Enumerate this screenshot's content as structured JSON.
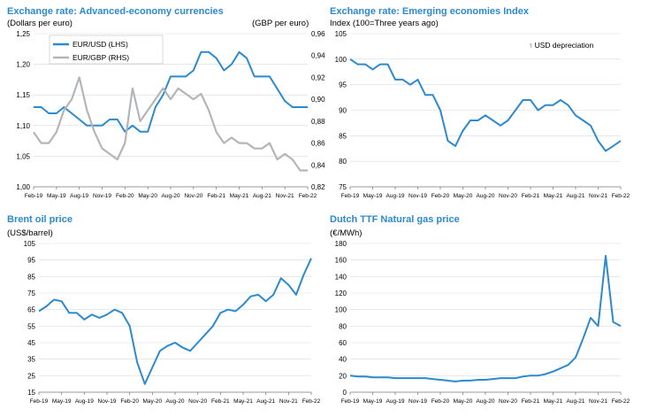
{
  "colors": {
    "blue": "#2b8ad0",
    "grey": "#b3b6b8",
    "grid": "#d9d9d9",
    "title": "#2b8ad0"
  },
  "x_ticks": [
    "Feb-19",
    "May-19",
    "Aug-19",
    "Nov-19",
    "Feb-20",
    "May-20",
    "Aug-20",
    "Nov-20",
    "Feb-21",
    "May-21",
    "Aug-21",
    "Nov-21",
    "Feb-22"
  ],
  "panels": [
    {
      "title": "Exchange rate: Advanced-economy currencies",
      "unit_left": "(Dollars per euro)",
      "unit_right": "(GBP per euro)"
    },
    {
      "title": "Exchange rate: Emerging economies Index",
      "unit_left": "Index (100=Three years ago)",
      "annotation": "USD depreciation",
      "annotation_icon": "up-arrow-icon"
    },
    {
      "title": "Brent oil price",
      "unit_left": "(US$/barrel)"
    },
    {
      "title": "Dutch TTF Natural gas price",
      "unit_left": "(€/MWh)"
    }
  ],
  "chart_data": [
    {
      "type": "line",
      "x": [
        "Feb-19",
        "Mar-19",
        "Apr-19",
        "May-19",
        "Jun-19",
        "Jul-19",
        "Aug-19",
        "Sep-19",
        "Oct-19",
        "Nov-19",
        "Dec-19",
        "Jan-20",
        "Feb-20",
        "Mar-20",
        "Apr-20",
        "May-20",
        "Jun-20",
        "Jul-20",
        "Aug-20",
        "Sep-20",
        "Oct-20",
        "Nov-20",
        "Dec-20",
        "Jan-21",
        "Feb-21",
        "Mar-21",
        "Apr-21",
        "May-21",
        "Jun-21",
        "Jul-21",
        "Aug-21",
        "Sep-21",
        "Oct-21",
        "Nov-21",
        "Dec-21",
        "Jan-22",
        "Feb-22"
      ],
      "series": [
        {
          "name": "EUR/USD (LHS)",
          "axis": "left",
          "values": [
            1.13,
            1.13,
            1.12,
            1.12,
            1.13,
            1.12,
            1.11,
            1.1,
            1.1,
            1.1,
            1.11,
            1.11,
            1.09,
            1.1,
            1.09,
            1.09,
            1.13,
            1.15,
            1.18,
            1.18,
            1.18,
            1.19,
            1.22,
            1.22,
            1.21,
            1.19,
            1.2,
            1.22,
            1.21,
            1.18,
            1.18,
            1.18,
            1.16,
            1.14,
            1.13,
            1.13,
            1.13
          ]
        },
        {
          "name": "EUR/GBP (RHS)",
          "axis": "right",
          "values": [
            0.87,
            0.86,
            0.86,
            0.87,
            0.89,
            0.9,
            0.92,
            0.89,
            0.87,
            0.855,
            0.85,
            0.845,
            0.86,
            0.91,
            0.88,
            0.89,
            0.9,
            0.91,
            0.9,
            0.91,
            0.905,
            0.9,
            0.905,
            0.89,
            0.87,
            0.86,
            0.865,
            0.86,
            0.86,
            0.855,
            0.855,
            0.86,
            0.845,
            0.85,
            0.845,
            0.835,
            0.835
          ]
        }
      ],
      "left_axis": {
        "ylim": [
          1.0,
          1.25
        ],
        "ticks": [
          "1,00",
          "1,05",
          "1,10",
          "1,15",
          "1,20",
          "1,25"
        ]
      },
      "right_axis": {
        "ylim": [
          0.82,
          0.96
        ],
        "ticks": [
          "0,82",
          "0,84",
          "0,86",
          "0,88",
          "0,90",
          "0,92",
          "0,94",
          "0,96"
        ]
      },
      "legend": "top-left"
    },
    {
      "type": "line",
      "x": [
        "Feb-19",
        "Mar-19",
        "Apr-19",
        "May-19",
        "Jun-19",
        "Jul-19",
        "Aug-19",
        "Sep-19",
        "Oct-19",
        "Nov-19",
        "Dec-19",
        "Jan-20",
        "Feb-20",
        "Mar-20",
        "Apr-20",
        "May-20",
        "Jun-20",
        "Jul-20",
        "Aug-20",
        "Sep-20",
        "Oct-20",
        "Nov-20",
        "Dec-20",
        "Jan-21",
        "Feb-21",
        "Mar-21",
        "Apr-21",
        "May-21",
        "Jun-21",
        "Jul-21",
        "Aug-21",
        "Sep-21",
        "Oct-21",
        "Nov-21",
        "Dec-21",
        "Jan-22",
        "Feb-22"
      ],
      "series": [
        {
          "values": [
            100,
            99,
            99,
            98,
            99,
            99,
            96,
            96,
            95,
            96,
            93,
            93,
            90,
            84,
            83,
            86,
            88,
            88,
            89,
            88,
            87,
            88,
            90,
            92,
            92,
            90,
            91,
            91,
            92,
            91,
            89,
            88,
            87,
            84,
            82,
            83,
            84
          ]
        }
      ],
      "ylim": [
        75,
        105
      ],
      "y_ticks": [
        "75",
        "80",
        "85",
        "90",
        "95",
        "100",
        "105"
      ]
    },
    {
      "type": "line",
      "x": [
        "Feb-19",
        "Mar-19",
        "Apr-19",
        "May-19",
        "Jun-19",
        "Jul-19",
        "Aug-19",
        "Sep-19",
        "Oct-19",
        "Nov-19",
        "Dec-19",
        "Jan-20",
        "Feb-20",
        "Mar-20",
        "Apr-20",
        "May-20",
        "Jun-20",
        "Jul-20",
        "Aug-20",
        "Sep-20",
        "Oct-20",
        "Nov-20",
        "Dec-20",
        "Jan-21",
        "Feb-21",
        "Mar-21",
        "Apr-21",
        "May-21",
        "Jun-21",
        "Jul-21",
        "Aug-21",
        "Sep-21",
        "Oct-21",
        "Nov-21",
        "Dec-21",
        "Jan-22",
        "Feb-22"
      ],
      "series": [
        {
          "values": [
            64,
            67,
            71,
            70,
            63,
            63,
            59,
            62,
            60,
            62,
            65,
            63,
            55,
            33,
            20,
            30,
            40,
            43,
            45,
            42,
            40,
            45,
            50,
            55,
            63,
            65,
            64,
            68,
            73,
            74,
            70,
            74,
            84,
            80,
            74,
            86,
            96
          ]
        }
      ],
      "ylim": [
        15,
        105
      ],
      "y_ticks": [
        "15",
        "25",
        "35",
        "45",
        "55",
        "65",
        "75",
        "85",
        "95",
        "105"
      ]
    },
    {
      "type": "line",
      "x": [
        "Feb-19",
        "Mar-19",
        "Apr-19",
        "May-19",
        "Jun-19",
        "Jul-19",
        "Aug-19",
        "Sep-19",
        "Oct-19",
        "Nov-19",
        "Dec-19",
        "Jan-20",
        "Feb-20",
        "Mar-20",
        "Apr-20",
        "May-20",
        "Jun-20",
        "Jul-20",
        "Aug-20",
        "Sep-20",
        "Oct-20",
        "Nov-20",
        "Dec-20",
        "Jan-21",
        "Feb-21",
        "Mar-21",
        "Apr-21",
        "May-21",
        "Jun-21",
        "Jul-21",
        "Aug-21",
        "Sep-21",
        "Oct-21",
        "Nov-21",
        "Dec-21",
        "Jan-22",
        "Feb-22"
      ],
      "series": [
        {
          "values": [
            20,
            19,
            19,
            18,
            18,
            18,
            17,
            17,
            17,
            17,
            17,
            16,
            15,
            14,
            13,
            14,
            14,
            15,
            15,
            16,
            17,
            17,
            17,
            19,
            20,
            20,
            22,
            25,
            29,
            33,
            42,
            65,
            90,
            80,
            165,
            85,
            80
          ]
        }
      ],
      "ylim": [
        0,
        180
      ],
      "y_ticks": [
        "0",
        "20",
        "40",
        "60",
        "80",
        "100",
        "120",
        "140",
        "160",
        "180"
      ]
    }
  ]
}
